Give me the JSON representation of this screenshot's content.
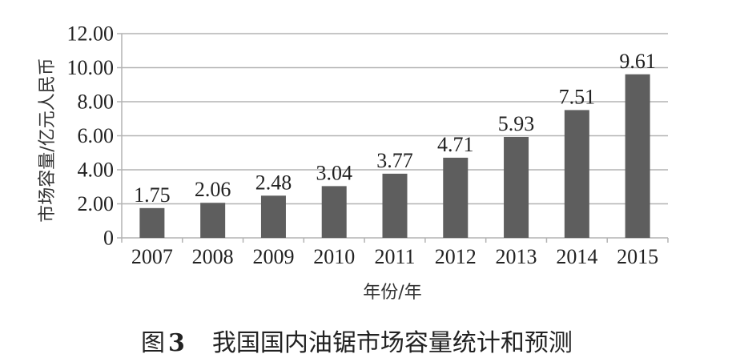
{
  "chart_data": {
    "type": "bar",
    "categories": [
      "2007",
      "2008",
      "2009",
      "2010",
      "2011",
      "2012",
      "2013",
      "2014",
      "2015"
    ],
    "values": [
      1.75,
      2.06,
      2.48,
      3.04,
      3.77,
      4.71,
      5.93,
      7.51,
      9.61
    ],
    "value_labels": [
      "1.75",
      "2.06",
      "2.48",
      "3.04",
      "3.77",
      "4.71",
      "5.93",
      "7.51",
      "9.61"
    ],
    "ylabel": "市场容量/亿元人民币",
    "xlabel": "年份/年",
    "ylim": [
      0,
      12
    ],
    "yticks": [
      0,
      2,
      4,
      6,
      8,
      10,
      12
    ],
    "ytick_labels": [
      "0",
      "2.00",
      "4.00",
      "6.00",
      "8.00",
      "10.00",
      "12.00"
    ],
    "grid": "horizontal",
    "bar_color": "#5e5e5e",
    "grid_color": "#b3b3b3"
  },
  "caption": {
    "prefix": "图",
    "number": "3",
    "text": "我国国内油锯市场容量统计和预测"
  }
}
